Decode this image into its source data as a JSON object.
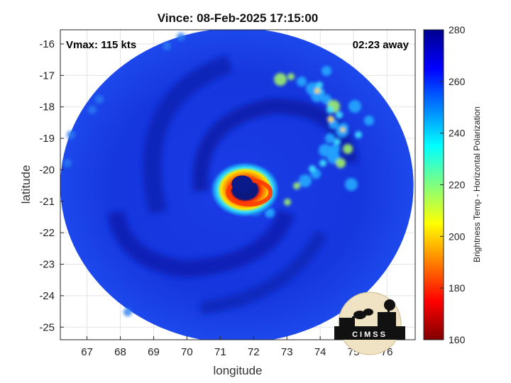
{
  "title": "Vince: 08-Feb-2025 17:15:00",
  "annotations": {
    "vmax": "Vmax: 115 kts",
    "time_away": "02:23 away"
  },
  "axes": {
    "xlabel": "longitude",
    "ylabel": "latitude",
    "xlim": [
      66.2,
      76.85
    ],
    "ylim": [
      -25.4,
      -15.55
    ],
    "xticks": [
      67,
      68,
      69,
      70,
      71,
      72,
      73,
      74,
      75,
      76
    ],
    "yticks": [
      -16,
      -17,
      -18,
      -19,
      -20,
      -21,
      -22,
      -23,
      -24,
      -25
    ],
    "grid": true
  },
  "colorbar": {
    "label": "Brightness Temp - Horizontal Polarization",
    "min": 160,
    "max": 280,
    "ticks": [
      280,
      260,
      240,
      220,
      200,
      180,
      160
    ],
    "colormap": "jet"
  },
  "swath": {
    "center_lon": 71.5,
    "center_lat": -20.5,
    "radius_lon": 5.3,
    "radius_lat": 5.0
  },
  "storm": {
    "eye_lon": 71.7,
    "eye_lat": -20.45
  },
  "logo": {
    "text": "CIMSS"
  },
  "colors": {
    "background_warm": "#1a3fe0",
    "deep_blue": "#0a1fb0",
    "eyewall": "#e8240a",
    "eye": "#0a1a8a"
  }
}
